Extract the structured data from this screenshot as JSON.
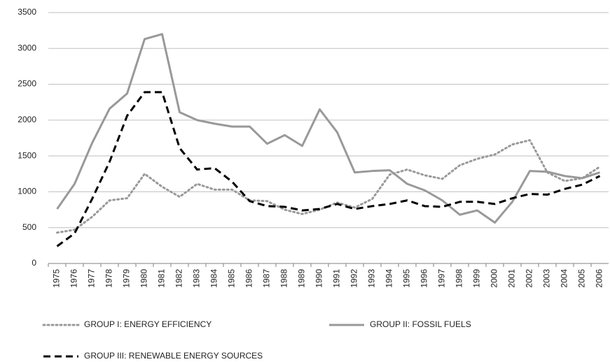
{
  "chart_data": {
    "type": "line",
    "categories": [
      "1975",
      "1976",
      "1977",
      "1978",
      "1979",
      "1980",
      "1981",
      "1982",
      "1983",
      "1984",
      "1985",
      "1986",
      "1987",
      "1988",
      "1989",
      "1990",
      "1991",
      "1992",
      "1993",
      "1994",
      "1995",
      "1996",
      "1997",
      "1998",
      "1999",
      "2000",
      "2001",
      "2002",
      "2003",
      "2004",
      "2005",
      "2006"
    ],
    "series": [
      {
        "name": "GROUP I: ENERGY EFFICIENCY",
        "color": "#999999",
        "style": "dotted",
        "values": [
          430,
          470,
          650,
          880,
          910,
          1250,
          1070,
          930,
          1110,
          1030,
          1030,
          880,
          870,
          750,
          690,
          750,
          850,
          780,
          900,
          1240,
          1310,
          1230,
          1180,
          1370,
          1460,
          1520,
          1660,
          1720,
          1270,
          1150,
          1190,
          1350
        ]
      },
      {
        "name": "GROUP II: FOSSIL FUELS",
        "color": "#999999",
        "style": "solid",
        "values": [
          760,
          1110,
          1680,
          2160,
          2370,
          3130,
          3200,
          2110,
          2000,
          1950,
          1910,
          1910,
          1670,
          1790,
          1640,
          2150,
          1830,
          1270,
          1290,
          1300,
          1110,
          1020,
          880,
          680,
          740,
          570,
          860,
          1290,
          1280,
          1220,
          1190,
          1270
        ]
      },
      {
        "name": "GROUP III: RENEWABLE ENERGY SOURCES",
        "color": "#000000",
        "style": "dashed",
        "values": [
          240,
          420,
          900,
          1420,
          2060,
          2390,
          2390,
          1610,
          1310,
          1330,
          1140,
          870,
          800,
          790,
          740,
          760,
          830,
          760,
          800,
          830,
          880,
          800,
          790,
          860,
          860,
          830,
          910,
          970,
          960,
          1040,
          1100,
          1220
        ]
      }
    ],
    "ylim": [
      0,
      3500
    ],
    "yticks": [
      0,
      500,
      1000,
      1500,
      2000,
      2500,
      3000,
      3500
    ],
    "grid": true
  }
}
